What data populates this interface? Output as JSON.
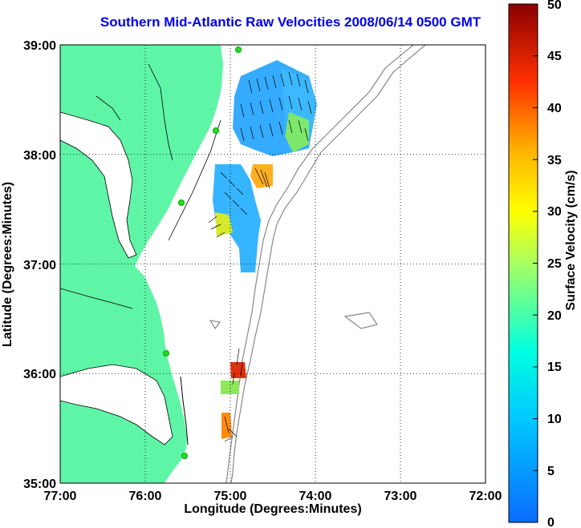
{
  "title": "Southern Mid-Atlantic Raw Velocities 2008/06/14 0500 GMT",
  "axes": {
    "xlabel": "Longitude (Degrees:Minutes)",
    "ylabel": "Latitude (Degrees:Minutes)",
    "x_ticks": [
      "77:00",
      "76:00",
      "75:00",
      "74:00",
      "73:00",
      "72:00"
    ],
    "y_ticks": [
      "39:00",
      "38:00",
      "37:00",
      "36:00",
      "35:00"
    ]
  },
  "colorbar": {
    "label": "Surface Velocity (cm/s)",
    "ticks": [
      "0",
      "5",
      "10",
      "15",
      "20",
      "25",
      "30",
      "35",
      "40",
      "45",
      "50"
    ]
  },
  "colors": {
    "land": "#5ff5a6",
    "title": "#0000ee",
    "water": "#ffffff",
    "bathymetry": "#888888"
  }
}
